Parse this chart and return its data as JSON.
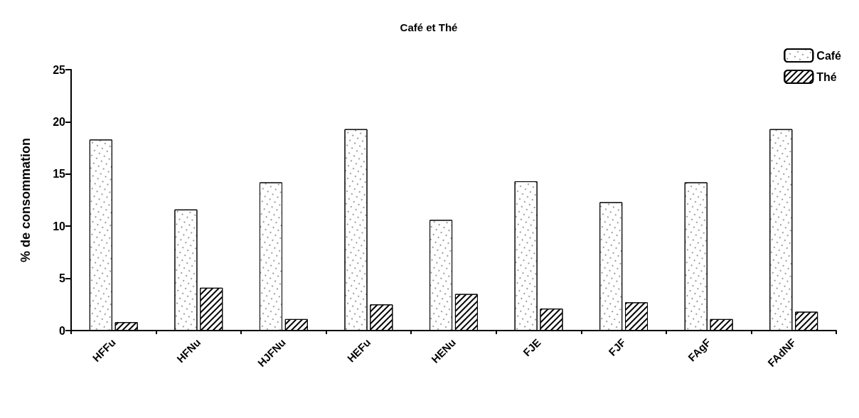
{
  "chart_data": {
    "type": "bar",
    "title": "Café et Thé",
    "ylabel": "% de consommation",
    "categories": [
      "HFFu",
      "HFNu",
      "HJFNu",
      "HEFu",
      "HENu",
      "FJE",
      "FJF",
      "FAgF",
      "FAdNF"
    ],
    "series": [
      {
        "name": "Café",
        "color": "#ffffff",
        "values": [
          18.3,
          11.6,
          14.2,
          19.3,
          10.6,
          14.3,
          12.3,
          14.2,
          19.3
        ]
      },
      {
        "name": "Thé",
        "color": "#ffffff",
        "values": [
          0.8,
          4.1,
          1.1,
          2.5,
          3.5,
          2.1,
          2.7,
          1.1,
          1.8
        ]
      }
    ],
    "ylim": [
      0,
      25
    ],
    "yticks": [
      0,
      5,
      10,
      15,
      20,
      25
    ],
    "grid": false,
    "legend": "top right"
  }
}
